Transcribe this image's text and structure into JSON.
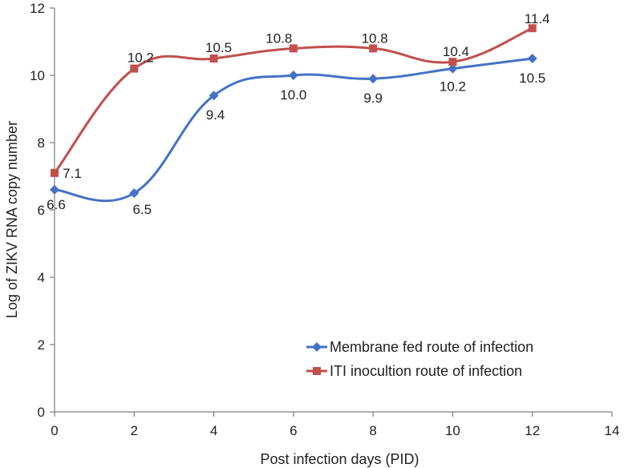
{
  "chart_data": {
    "type": "line",
    "title": "",
    "xlabel": "Post infection days (PID)",
    "ylabel": "Log of ZIKV RNA copy number",
    "xlim": [
      0,
      14
    ],
    "ylim": [
      0,
      12
    ],
    "xticks": [
      0,
      2,
      4,
      6,
      8,
      10,
      12,
      14
    ],
    "yticks": [
      0,
      2,
      4,
      6,
      8,
      10,
      12
    ],
    "grid": false,
    "legend_position": "bottom-right",
    "x": [
      0,
      2,
      4,
      6,
      8,
      10,
      12
    ],
    "series": [
      {
        "name": "Membrane fed route of infection",
        "marker": "diamond",
        "color": "#4472C4",
        "values": [
          6.6,
          6.5,
          9.4,
          10.0,
          9.9,
          10.2,
          10.5
        ],
        "labels": [
          "6.6",
          "6.5",
          "9.4",
          "10.0",
          "9.9",
          "10.2",
          "10.5"
        ]
      },
      {
        "name": "ITI inocultion route of infection",
        "marker": "square",
        "color": "#C0504D",
        "values": [
          7.1,
          10.2,
          10.5,
          10.8,
          10.8,
          10.4,
          11.4
        ],
        "labels": [
          "7.1",
          "10.2",
          "10.5",
          "10.8",
          "10.8",
          "10.4",
          "11.4"
        ]
      }
    ]
  }
}
